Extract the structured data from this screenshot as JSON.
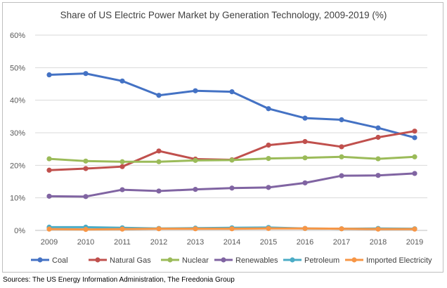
{
  "chart_data": {
    "type": "line",
    "title": "Share of US Electric Power Market by Generation Technology, 2009-2019 (%)",
    "xlabel": "",
    "ylabel": "",
    "x": [
      "2009",
      "2010",
      "2011",
      "2012",
      "2013",
      "2014",
      "2015",
      "2016",
      "2017",
      "2018",
      "2019"
    ],
    "ylim": [
      0,
      60
    ],
    "yticks": [
      "0%",
      "10%",
      "20%",
      "30%",
      "40%",
      "50%",
      "60%"
    ],
    "grid": true,
    "legend_position": "bottom",
    "series": [
      {
        "name": "Coal",
        "color": "#4472c4",
        "values": [
          47.8,
          48.2,
          45.9,
          41.5,
          42.9,
          42.6,
          37.4,
          34.5,
          34.0,
          31.5,
          28.5
        ]
      },
      {
        "name": "Natural Gas",
        "color": "#c0504d",
        "values": [
          18.5,
          19.0,
          19.6,
          24.4,
          21.9,
          21.7,
          26.2,
          27.3,
          25.7,
          28.6,
          30.5
        ]
      },
      {
        "name": "Nuclear",
        "color": "#9bbb59",
        "values": [
          22.0,
          21.3,
          21.1,
          21.1,
          21.5,
          21.6,
          22.1,
          22.3,
          22.6,
          22.0,
          22.6
        ]
      },
      {
        "name": "Renewables",
        "color": "#8064a2",
        "values": [
          10.5,
          10.4,
          12.5,
          12.1,
          12.6,
          13.0,
          13.2,
          14.6,
          16.8,
          16.9,
          17.5
        ]
      },
      {
        "name": "Petroleum",
        "color": "#4bacc6",
        "values": [
          1.0,
          1.0,
          0.8,
          0.6,
          0.7,
          0.8,
          0.9,
          0.6,
          0.5,
          0.6,
          0.5
        ]
      },
      {
        "name": "Imported Electricity",
        "color": "#f79646",
        "values": [
          0.4,
          0.3,
          0.4,
          0.5,
          0.5,
          0.5,
          0.6,
          0.6,
          0.5,
          0.4,
          0.4
        ]
      }
    ]
  },
  "source": "Sources: The US Energy Information Administration, The Freedonia Group"
}
